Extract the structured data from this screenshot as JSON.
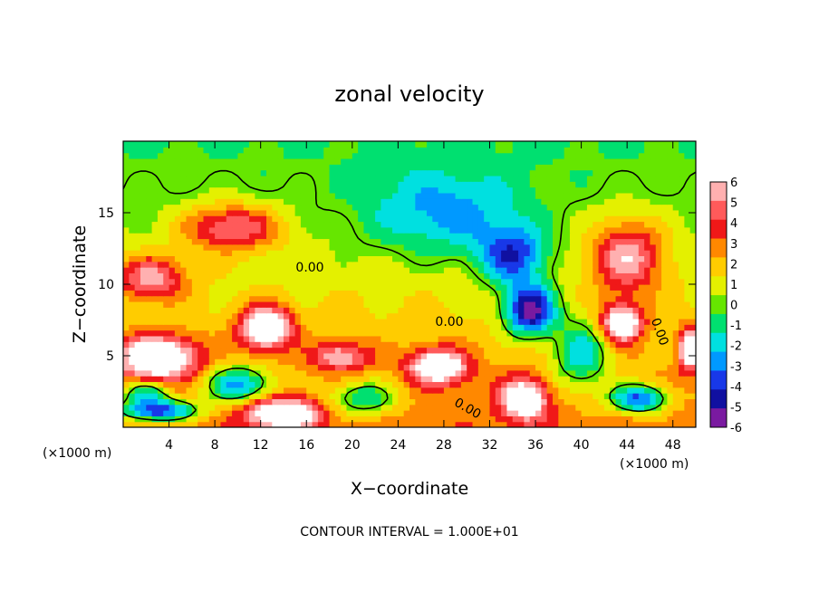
{
  "chart_data": {
    "type": "heatmap",
    "title": "zonal velocity",
    "xlabel": "X−coordinate",
    "ylabel": "Z−coordinate",
    "x_unit_left": "(×1000 m)",
    "x_unit_right": "(×1000 m)",
    "footer": "CONTOUR INTERVAL = 1.000E+01",
    "xlim": [
      0,
      50
    ],
    "ylim": [
      0,
      20
    ],
    "x_ticks": [
      4,
      8,
      12,
      16,
      20,
      24,
      28,
      32,
      36,
      40,
      44,
      48
    ],
    "y_ticks": [
      5,
      10,
      15
    ],
    "contour_labels": [
      "0.00",
      "0.00",
      "0.00",
      "0.00"
    ],
    "colorbar": {
      "min": -6,
      "max": 6,
      "ticks": [
        6,
        5,
        4,
        3,
        2,
        1,
        0,
        -1,
        -2,
        -3,
        -4,
        -5,
        -6
      ],
      "colors": [
        "#ffb0b0",
        "#ff5a5a",
        "#f01818",
        "#ff8800",
        "#ffcc00",
        "#e4f000",
        "#66e600",
        "#00e070",
        "#00e0e0",
        "#0099ff",
        "#1838e8",
        "#1010a0",
        "#7a1aa0"
      ],
      "saturated_color": "#ffffff"
    },
    "features": [
      {
        "x": 9.5,
        "z": 14,
        "value": 4.8,
        "sx": 4,
        "sz": 1.6
      },
      {
        "x": 2.5,
        "z": 10.5,
        "value": 4.5,
        "sx": 3,
        "sz": 1.5
      },
      {
        "x": 3,
        "z": 4.9,
        "value": 7,
        "sx": 3.5,
        "sz": 1.5
      },
      {
        "x": 3,
        "z": 1.2,
        "value": -6.5,
        "sx": 3.5,
        "sz": 0.8
      },
      {
        "x": 12.5,
        "z": 7,
        "value": 7,
        "sx": 2.2,
        "sz": 1.5
      },
      {
        "x": 14,
        "z": 1,
        "value": 7,
        "sx": 3,
        "sz": 1
      },
      {
        "x": 27.5,
        "z": 4.3,
        "value": 6.5,
        "sx": 2.5,
        "sz": 1.2
      },
      {
        "x": 35.5,
        "z": 8.2,
        "value": -7,
        "sx": 2.2,
        "sz": 1.8
      },
      {
        "x": 35,
        "z": 2,
        "value": 6,
        "sx": 2,
        "sz": 1.4
      },
      {
        "x": 34,
        "z": 12,
        "value": -4.5,
        "sx": 3,
        "sz": 2
      },
      {
        "x": 28,
        "z": 15,
        "value": -3,
        "sx": 7,
        "sz": 3
      },
      {
        "x": 44,
        "z": 12,
        "value": 5,
        "sx": 3,
        "sz": 2.5
      },
      {
        "x": 43.5,
        "z": 7.3,
        "value": 7,
        "sx": 1.8,
        "sz": 1.3
      },
      {
        "x": 45,
        "z": 2,
        "value": -6,
        "sx": 2.5,
        "sz": 1
      },
      {
        "x": 49.5,
        "z": 5.5,
        "value": 6,
        "sx": 1,
        "sz": 1.5
      },
      {
        "x": 40,
        "z": 5,
        "value": -4,
        "sx": 2.5,
        "sz": 2.5
      },
      {
        "x": 10,
        "z": 3,
        "value": -5,
        "sx": 3,
        "sz": 1.3
      },
      {
        "x": 21,
        "z": 2,
        "value": -4,
        "sx": 3,
        "sz": 1.2
      },
      {
        "x": 19,
        "z": 5,
        "value": 4,
        "sx": 2.5,
        "sz": 1
      },
      {
        "x": 2,
        "z": 2.5,
        "value": -4,
        "sx": 2,
        "sz": 0.8
      }
    ]
  }
}
